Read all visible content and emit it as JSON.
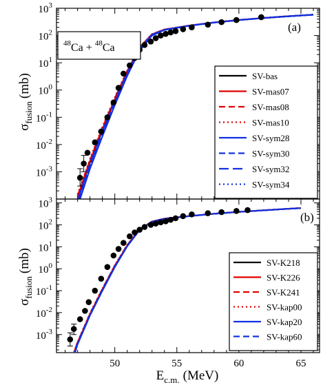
{
  "chart_data": [
    {
      "panel": "(a)",
      "type": "line",
      "ylabel": "σ",
      "ylabel_sub": "fusion",
      "ylabel_unit": "(mb)",
      "xlim": [
        45.3,
        66.5
      ],
      "ylim_exp": [
        -4,
        3
      ],
      "yscale": "log",
      "annotation": {
        "m1": "48",
        "e1": "Ca",
        "plus": " + ",
        "m2": "48",
        "e2": "Ca"
      },
      "y_ticks": [
        "10",
        "10",
        "10",
        "10",
        "10",
        "10"
      ],
      "y_tick_exps": [
        "-3",
        "-2",
        "-1",
        "0",
        "1",
        "2",
        "3"
      ],
      "experiment": {
        "name": "experiment",
        "x": [
          47.2,
          47.5,
          47.8,
          48.4,
          48.9,
          49.4,
          49.9,
          50.3,
          50.7,
          51.2,
          51.6,
          52.0,
          52.4,
          52.9,
          53.3,
          53.7,
          54.1,
          54.5,
          54.9,
          55.5,
          56.2,
          57.5,
          58.6,
          59.8,
          61.8
        ],
        "y": [
          0.0006,
          0.002,
          0.005,
          0.012,
          0.03,
          0.1,
          0.35,
          1.2,
          4.0,
          8.0,
          15.0,
          30.0,
          45.0,
          60.0,
          80.0,
          100.0,
          115.0,
          130.0,
          145.0,
          170.0,
          200.0,
          250.0,
          310.0,
          370.0,
          470.0
        ],
        "err_lo": [
          0.0003,
          0.001,
          0,
          0,
          0,
          0,
          0,
          0,
          0,
          0,
          0,
          0,
          0,
          0,
          0,
          0,
          0,
          0,
          0,
          0,
          0,
          0,
          0,
          0,
          0
        ],
        "err_hi": [
          0.0007,
          0.002,
          0,
          0,
          0,
          0,
          0,
          0,
          0,
          0,
          0,
          0,
          0,
          0,
          0,
          0,
          0,
          0,
          0,
          0,
          0,
          0,
          0,
          0,
          0
        ]
      },
      "series": [
        {
          "name": "SV-bas",
          "color": "#000000",
          "dash": "solid",
          "x": [
            47.0,
            48,
            49,
            50,
            51,
            52,
            53,
            54,
            56,
            58,
            60,
            62,
            64,
            66
          ],
          "y": [
            0.0001,
            0.0022,
            0.033,
            0.42,
            4.5,
            35.0,
            110.0,
            165.0,
            230.0,
            300.0,
            370.0,
            440.0,
            510.0,
            580.0
          ]
        },
        {
          "name": "SV-mas07",
          "color": "#e00000",
          "dash": "solid",
          "x": [
            47.0,
            48,
            49,
            50,
            51,
            52,
            53,
            54,
            56,
            58,
            60,
            62,
            64,
            66
          ],
          "y": [
            0.00012,
            0.0025,
            0.037,
            0.46,
            4.8,
            36.0,
            111.0,
            166.0,
            231.0,
            301.0,
            371.0,
            441.0,
            511.0,
            581.0
          ]
        },
        {
          "name": "SV-mas08",
          "color": "#e00000",
          "dash": "dashed",
          "x": [
            47.0,
            48,
            49,
            50,
            51,
            52,
            53,
            54,
            56,
            58,
            60,
            62,
            64,
            66
          ],
          "y": [
            0.00013,
            0.0027,
            0.04,
            0.5,
            5.0,
            37.0,
            112.0,
            167.0,
            232.0,
            302.0,
            372.0,
            442.0,
            512.0,
            582.0
          ]
        },
        {
          "name": "SV-mas10",
          "color": "#e00000",
          "dash": "dotted",
          "x": [
            47.0,
            48,
            49,
            50,
            51,
            52,
            53,
            54,
            56,
            58,
            60,
            62,
            64,
            66
          ],
          "y": [
            0.00015,
            0.003,
            0.045,
            0.55,
            5.3,
            38.0,
            113.0,
            168.0,
            233.0,
            303.0,
            373.0,
            443.0,
            513.0,
            583.0
          ]
        },
        {
          "name": "SV-sym28",
          "color": "#1030e0",
          "dash": "solid",
          "x": [
            47.2,
            48,
            49,
            50,
            51,
            52,
            53,
            54,
            56,
            58,
            60,
            62,
            64,
            66
          ],
          "y": [
            0.0001,
            0.0013,
            0.02,
            0.28,
            3.3,
            28.0,
            100.0,
            160.0,
            228.0,
            298.0,
            368.0,
            438.0,
            508.0,
            578.0
          ]
        },
        {
          "name": "SV-sym30",
          "color": "#1030e0",
          "dash": "dashed",
          "x": [
            47.1,
            48,
            49,
            50,
            51,
            52,
            53,
            54,
            56,
            58,
            60,
            62,
            64,
            66
          ],
          "y": [
            0.0001,
            0.0016,
            0.025,
            0.33,
            3.8,
            31.0,
            104.0,
            162.0,
            229.0,
            299.0,
            369.0,
            439.0,
            509.0,
            579.0
          ]
        },
        {
          "name": "SV-sym32",
          "color": "#1030e0",
          "dash": "longdash",
          "x": [
            47.05,
            48,
            49,
            50,
            51,
            52,
            53,
            54,
            56,
            58,
            60,
            62,
            64,
            66
          ],
          "y": [
            0.0001,
            0.0019,
            0.029,
            0.38,
            4.2,
            33.0,
            107.0,
            163.0,
            230.0,
            300.0,
            370.0,
            440.0,
            510.0,
            580.0
          ]
        },
        {
          "name": "SV-sym34",
          "color": "#1030e0",
          "dash": "dotted",
          "x": [
            47.0,
            48,
            49,
            50,
            51,
            52,
            53,
            54,
            56,
            58,
            60,
            62,
            64,
            66
          ],
          "y": [
            0.0001,
            0.0023,
            0.034,
            0.43,
            4.6,
            35.0,
            110.0,
            165.0,
            231.0,
            301.0,
            371.0,
            441.0,
            511.0,
            581.0
          ]
        }
      ]
    },
    {
      "panel": "(b)",
      "type": "line",
      "ylabel": "σ",
      "ylabel_sub": "fusion",
      "ylabel_unit": "(mb)",
      "xlabel": "E",
      "xlabel_sub": "c.m.",
      "xlabel_unit": "(MeV)",
      "x_ticks": [
        "50",
        "55",
        "60",
        "65"
      ],
      "xlim": [
        45.3,
        66.5
      ],
      "ylim_exp": [
        -4,
        3
      ],
      "yscale": "log",
      "y_ticks": [
        "10",
        "10",
        "10",
        "10",
        "10",
        "10"
      ],
      "y_tick_exps": [
        "-3",
        "-2",
        "-1",
        "0",
        "1",
        "2",
        "3"
      ],
      "experiment": {
        "name": "experiment",
        "x": [
          46.4,
          46.7,
          47.2,
          47.6,
          47.9,
          48.4,
          48.9,
          49.4,
          49.9,
          50.3,
          50.7,
          51.2,
          51.6,
          52.0,
          52.4,
          52.9,
          53.3,
          53.7,
          54.1,
          54.5,
          54.9,
          55.5,
          56.2,
          57.5,
          58.6,
          59.8,
          60.7
        ],
        "y": [
          0.0006,
          0.0018,
          0.005,
          0.012,
          0.03,
          0.1,
          0.35,
          1.2,
          4.0,
          8.0,
          15.0,
          30.0,
          45.0,
          60.0,
          80.0,
          100.0,
          115.0,
          130.0,
          145.0,
          170.0,
          200.0,
          250.0,
          300.0,
          340.0,
          380.0,
          430.0,
          470.0
        ],
        "err_lo": [
          0.0003,
          0.0008,
          0,
          0,
          0,
          0,
          0,
          0,
          0,
          0,
          0,
          0,
          0,
          0,
          0,
          0,
          0,
          0,
          0,
          0,
          0,
          0,
          0,
          0,
          0,
          0,
          0
        ],
        "err_hi": [
          0.0006,
          0.0012,
          0,
          0,
          0,
          0,
          0,
          0,
          0,
          0,
          0,
          0,
          0,
          0,
          0,
          0,
          0,
          0,
          0,
          0,
          0,
          0,
          0,
          0,
          0,
          0,
          0
        ]
      },
      "series": [
        {
          "name": "SV-K218",
          "color": "#000000",
          "dash": "solid",
          "x": [
            46.6,
            47,
            48,
            49,
            50,
            51,
            52,
            53,
            54,
            56,
            58,
            60,
            62,
            64,
            65
          ],
          "y": [
            0.0001,
            0.0004,
            0.008,
            0.11,
            1.3,
            11.0,
            60.0,
            140.0,
            190.0,
            250.0,
            320.0,
            390.0,
            460.0,
            540.0,
            580.0
          ]
        },
        {
          "name": "SV-K226",
          "color": "#e00000",
          "dash": "solid",
          "x": [
            46.6,
            47,
            48,
            49,
            50,
            51,
            52,
            53,
            54,
            56,
            58,
            60,
            62,
            64,
            65
          ],
          "y": [
            0.0001,
            0.00042,
            0.0085,
            0.115,
            1.35,
            11.5,
            61.0,
            141.0,
            191.0,
            251.0,
            321.0,
            391.0,
            461.0,
            541.0,
            581.0
          ]
        },
        {
          "name": "SV-K241",
          "color": "#e00000",
          "dash": "dashed",
          "x": [
            46.6,
            47,
            48,
            49,
            50,
            51,
            52,
            53,
            54,
            56,
            58,
            60,
            62,
            64,
            65
          ],
          "y": [
            0.0001,
            0.00044,
            0.009,
            0.12,
            1.4,
            12.0,
            62.0,
            142.0,
            192.0,
            252.0,
            322.0,
            392.0,
            462.0,
            542.0,
            582.0
          ]
        },
        {
          "name": "SV-kap00",
          "color": "#e00000",
          "dash": "dotted",
          "x": [
            46.6,
            47,
            48,
            49,
            50,
            51,
            52,
            53,
            54,
            56,
            58,
            60,
            62,
            64,
            65
          ],
          "y": [
            0.0001,
            0.00046,
            0.0095,
            0.125,
            1.45,
            12.3,
            62.5,
            142.0,
            192.0,
            252.0,
            322.0,
            392.0,
            462.0,
            542.0,
            582.0
          ]
        },
        {
          "name": "SV-kap20",
          "color": "#1030e0",
          "dash": "solid",
          "x": [
            46.7,
            47,
            48,
            49,
            50,
            51,
            52,
            53,
            54,
            56,
            58,
            60,
            62,
            64,
            65
          ],
          "y": [
            0.0001,
            0.00036,
            0.0075,
            0.1,
            1.2,
            10.5,
            58.0,
            138.0,
            189.0,
            249.0,
            319.0,
            389.0,
            459.0,
            539.0,
            579.0
          ]
        },
        {
          "name": "SV-kap60",
          "color": "#1030e0",
          "dash": "dashed",
          "x": [
            46.6,
            47,
            48,
            49,
            50,
            51,
            52,
            53,
            54,
            56,
            58,
            60,
            62,
            64,
            65
          ],
          "y": [
            0.0001,
            0.0004,
            0.0082,
            0.11,
            1.3,
            11.2,
            60.0,
            140.0,
            190.0,
            250.0,
            320.0,
            390.0,
            460.0,
            540.0,
            580.0
          ]
        }
      ]
    }
  ]
}
